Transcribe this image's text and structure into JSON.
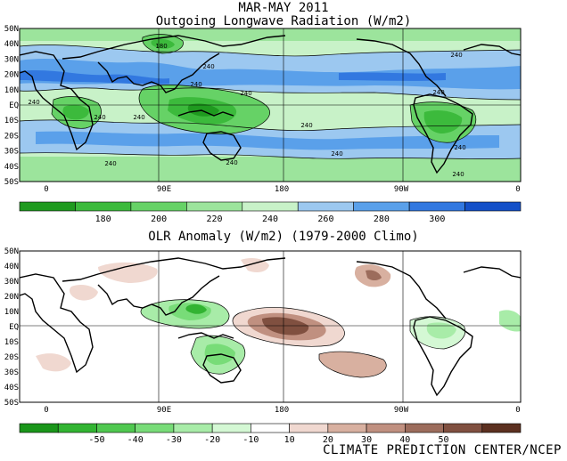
{
  "header": {
    "period": "MAR-MAY 2011",
    "top_title": "Outgoing Longwave Radiation (W/m2)"
  },
  "bottom_title": "OLR Anomaly (W/m2) (1979-2000 Climo)",
  "credit": "CLIMATE PREDICTION CENTER/NCEP",
  "axes": {
    "lat_labels": [
      "50N",
      "40N",
      "30N",
      "20N",
      "10N",
      "EQ",
      "10S",
      "20S",
      "30S",
      "40S",
      "50S"
    ],
    "lon_labels": [
      "0",
      "90E",
      "180",
      "90W",
      "0"
    ]
  },
  "top_colorbar": {
    "labels": [
      "180",
      "200",
      "220",
      "240",
      "260",
      "280",
      "300"
    ],
    "colors": [
      "#1f9a1f",
      "#3cba3c",
      "#66d266",
      "#9ce49c",
      "#c8f2c8",
      "#9cc8f0",
      "#5aa0ea",
      "#3278e0",
      "#1450c8"
    ]
  },
  "bottom_colorbar": {
    "labels": [
      "-50",
      "-40",
      "-30",
      "-20",
      "-10",
      "10",
      "20",
      "30",
      "40",
      "50"
    ],
    "colors": [
      "#1a961a",
      "#32b432",
      "#50c850",
      "#78dc78",
      "#a8eca8",
      "#d4f8d4",
      "#ffffff",
      "#f0d8d0",
      "#d8b0a0",
      "#c09080",
      "#9c6c5c",
      "#805040",
      "#5c3020"
    ]
  },
  "contour_labels_top": [
    "180",
    "240",
    "240",
    "240",
    "240",
    "240",
    "240",
    "240",
    "240",
    "240",
    "240",
    "240",
    "240",
    "240"
  ],
  "contour_labels_top_b": [
    "240"
  ]
}
